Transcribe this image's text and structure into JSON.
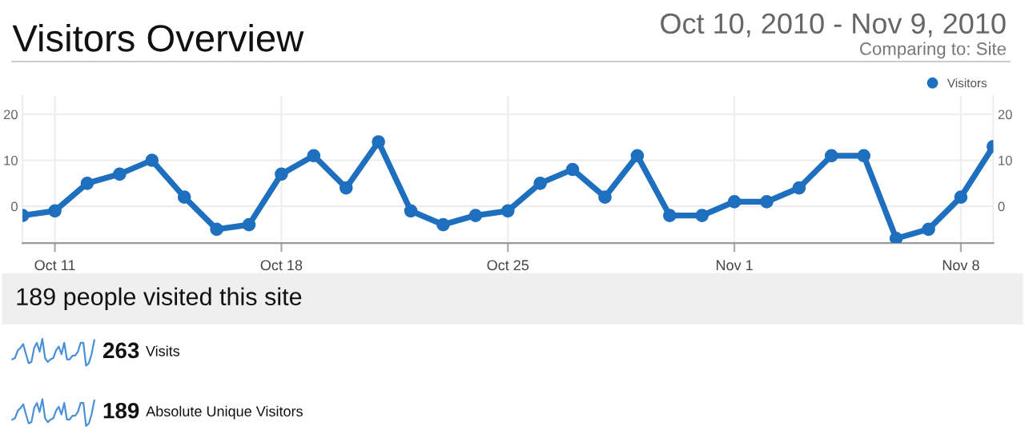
{
  "chart_data": {
    "type": "line",
    "title": "Visitors Overview",
    "subtitle": "Oct 10, 2010 - Nov 9, 2010",
    "annotations": [
      "Comparing to: Site",
      "189 people visited this site",
      "263 Visits",
      "189 Absolute Unique Visitors"
    ],
    "x": [
      "2010-10-10",
      "2010-10-11",
      "2010-10-12",
      "2010-10-13",
      "2010-10-14",
      "2010-10-15",
      "2010-10-16",
      "2010-10-17",
      "2010-10-18",
      "2010-10-19",
      "2010-10-20",
      "2010-10-21",
      "2010-10-22",
      "2010-10-23",
      "2010-10-24",
      "2010-10-25",
      "2010-10-26",
      "2010-10-27",
      "2010-10-28",
      "2010-10-29",
      "2010-10-30",
      "2010-10-31",
      "2010-11-01",
      "2010-11-02",
      "2010-11-03",
      "2010-11-04",
      "2010-11-05",
      "2010-11-06",
      "2010-11-07",
      "2010-11-08",
      "2010-11-09"
    ],
    "series": [
      {
        "name": "Visitors",
        "color": "#1f6fbf",
        "values": [
          -2,
          -1,
          5,
          7,
          10,
          2,
          -5,
          -4,
          7,
          11,
          4,
          14,
          -1,
          -4,
          -2,
          -1,
          5,
          8,
          2,
          11,
          -2,
          -2,
          1,
          1,
          4,
          11,
          11,
          -7,
          -5,
          2,
          13
        ]
      }
    ],
    "xlim": [
      "2010-10-10",
      "2010-11-09"
    ],
    "xticks": [
      {
        "value": "2010-10-11",
        "label": "Oct 11"
      },
      {
        "value": "2010-10-18",
        "label": "Oct 18"
      },
      {
        "value": "2010-10-25",
        "label": "Oct 25"
      },
      {
        "value": "2010-11-01",
        "label": "Nov 1"
      },
      {
        "value": "2010-11-08",
        "label": "Nov 8"
      }
    ],
    "ylim": [
      -8,
      24
    ],
    "yticks": [
      0,
      10,
      20
    ],
    "y2lim": [
      -8,
      24
    ],
    "y2ticks": [
      0,
      10,
      20
    ],
    "grid": true,
    "legend": "top right",
    "marker": "circle",
    "line_style": "solid"
  }
}
